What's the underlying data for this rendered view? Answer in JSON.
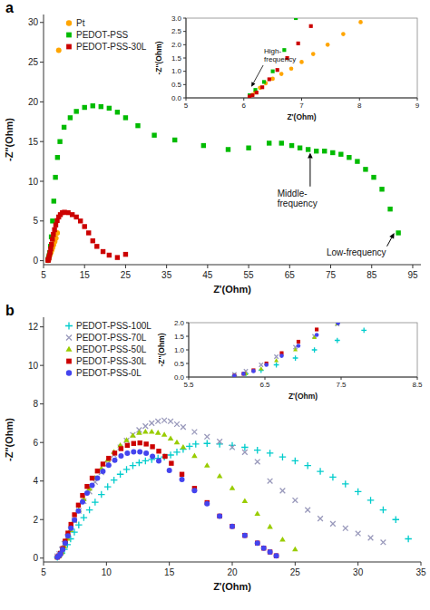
{
  "chart_data": [
    {
      "type": "scatter",
      "title": "a",
      "xlabel": "Z'(Ohm)",
      "ylabel": "-Z''(Ohm)",
      "xlim": [
        5,
        97
      ],
      "ylim": [
        -0.5,
        31
      ],
      "xticks": [
        5,
        15,
        25,
        35,
        45,
        55,
        65,
        75,
        85,
        95
      ],
      "yticks": [
        0,
        5,
        10,
        15,
        20,
        25,
        30
      ],
      "legend": "upper left",
      "series": [
        {
          "name": "Pt",
          "color": "#FFA500",
          "marker": "circle",
          "x": [
            6.1,
            6.15,
            6.2,
            6.28,
            6.38,
            6.5,
            6.65,
            6.82,
            7.0,
            7.2,
            7.45,
            7.72,
            8.02,
            8.35,
            8.7
          ],
          "values": [
            0.05,
            0.12,
            0.22,
            0.38,
            0.55,
            0.72,
            0.9,
            1.1,
            1.35,
            1.65,
            2.0,
            2.4,
            2.85,
            3.5,
            26.5
          ]
        },
        {
          "name": "PEDOT-PSS",
          "color": "#00BB00",
          "marker": "square",
          "x": [
            6.1,
            6.2,
            6.35,
            6.5,
            6.7,
            6.9,
            7.2,
            7.5,
            7.9,
            8.4,
            9.0,
            10.0,
            11.5,
            13.0,
            15.0,
            17.0,
            19.0,
            21.0,
            23.0,
            25.0,
            28.0,
            32.0,
            37.0,
            44.0,
            50.0,
            55.0,
            60.0,
            63.0,
            65.5,
            67.5,
            69.5,
            71.5,
            73.5,
            75.5,
            77.5,
            79.5,
            81.5,
            83.5,
            85.5,
            87.5,
            89.5,
            91.5
          ],
          "values": [
            0.1,
            0.3,
            0.6,
            1.0,
            1.8,
            3.0,
            5.0,
            7.5,
            10.5,
            13.0,
            15.0,
            16.8,
            18.0,
            18.8,
            19.3,
            19.5,
            19.4,
            19.2,
            18.7,
            18.0,
            17.0,
            15.8,
            15.2,
            14.5,
            14.0,
            14.2,
            14.8,
            14.8,
            14.5,
            14.2,
            14.0,
            13.8,
            13.8,
            13.6,
            13.4,
            13.0,
            12.5,
            11.5,
            10.5,
            9.0,
            6.5,
            3.5
          ]
        },
        {
          "name": "PEDOT-PSS-30L",
          "color": "#CC0000",
          "marker": "square",
          "x": [
            6.1,
            6.15,
            6.22,
            6.32,
            6.44,
            6.58,
            6.75,
            6.94,
            7.16,
            7.4,
            7.68,
            7.98,
            8.32,
            8.7,
            9.1,
            9.6,
            10.1,
            11.0,
            12.0,
            13.0,
            14.0,
            15.0,
            16.0,
            17.0,
            18.0,
            19.5,
            21.0,
            23.0,
            25.0
          ],
          "values": [
            0.05,
            0.1,
            0.2,
            0.4,
            0.7,
            1.05,
            1.5,
            2.05,
            2.7,
            3.3,
            3.9,
            4.5,
            5.05,
            5.5,
            5.8,
            6.05,
            6.1,
            6.05,
            5.8,
            5.5,
            5.0,
            4.3,
            3.5,
            2.5,
            1.8,
            1.15,
            0.7,
            0.4,
            0.8
          ]
        }
      ],
      "annotations": [
        {
          "text": "Middle-\nfrequency",
          "x": 70,
          "y": 13.6,
          "text_x": 62,
          "text_y": 9.0
        },
        {
          "text": "Low-frequency",
          "x": 90.5,
          "y": 3.5,
          "text_x": 74,
          "text_y": 1.5
        }
      ]
    },
    {
      "type": "scatter",
      "xlabel": "Z'(Ohm)",
      "ylabel": "-Z''(Ohm)",
      "xlim": [
        5.0,
        9.0
      ],
      "ylim": [
        0.0,
        3.0
      ],
      "xticks": [
        5,
        6,
        7,
        8,
        9
      ],
      "yticks": [
        {
          "value": 0,
          "label": "0.0"
        },
        0.5,
        {
          "value": 1,
          "label": "1.0"
        },
        1.5,
        {
          "value": 2,
          "label": "2.0"
        },
        2.5,
        {
          "value": 3,
          "label": "3.0"
        }
      ],
      "series": [
        {
          "name": "Pt",
          "color": "#FFA500",
          "marker": "circle",
          "x": [
            6.1,
            6.15,
            6.2,
            6.28,
            6.38,
            6.5,
            6.65,
            6.82,
            7.0,
            7.2,
            7.45,
            7.72,
            8.02
          ],
          "values": [
            0.05,
            0.12,
            0.22,
            0.38,
            0.55,
            0.72,
            0.9,
            1.1,
            1.35,
            1.65,
            2.0,
            2.4,
            2.85
          ]
        },
        {
          "name": "PEDOT-PSS",
          "color": "#00BB00",
          "marker": "square",
          "x": [
            6.1,
            6.2,
            6.35,
            6.5,
            6.7,
            6.9
          ],
          "values": [
            0.1,
            0.3,
            0.6,
            1.0,
            1.8,
            3.0
          ]
        },
        {
          "name": "PEDOT-PSS-30L",
          "color": "#CC0000",
          "marker": "square",
          "x": [
            6.1,
            6.15,
            6.22,
            6.32,
            6.44,
            6.58,
            6.75,
            6.94,
            7.16
          ],
          "values": [
            0.05,
            0.1,
            0.2,
            0.4,
            0.7,
            1.05,
            1.5,
            2.05,
            2.7
          ]
        }
      ],
      "annotations": [
        {
          "text": "High-\nfrequency",
          "x": 6.13,
          "y": 0.42,
          "text_x": 6.35,
          "text_y": 1.3
        }
      ]
    },
    {
      "type": "scatter",
      "title": "b",
      "xlabel": "Z'(Ohm)",
      "ylabel": "-Z''(Ohm)",
      "xlim": [
        5,
        35
      ],
      "ylim": [
        -0.2,
        12.5
      ],
      "xticks": [
        5,
        10,
        15,
        20,
        25,
        30,
        35
      ],
      "yticks": [
        0,
        2,
        4,
        6,
        8,
        10,
        12
      ],
      "legend": "upper left",
      "series": [
        {
          "name": "PEDOT-PSS-100L",
          "color": "#00CCCC",
          "marker": "plus",
          "x": [
            6.1,
            6.25,
            6.45,
            6.65,
            6.9,
            7.15,
            7.45,
            7.8,
            8.2,
            8.65,
            9.1,
            9.6,
            10.1,
            10.6,
            11.1,
            11.6,
            12.1,
            12.6,
            13.1,
            13.6,
            14.1,
            14.6,
            15.1,
            15.6,
            16.1,
            16.6,
            17.1,
            18.0,
            19.0,
            20.0,
            21.0,
            22.0,
            23.0,
            24.0,
            25.0,
            26.0,
            27.0,
            28.0,
            29.0,
            30.0,
            31.0,
            32.0,
            33.0,
            34.0
          ],
          "values": [
            0.05,
            0.12,
            0.25,
            0.45,
            0.7,
            1.0,
            1.35,
            1.72,
            2.1,
            2.5,
            2.9,
            3.3,
            3.7,
            4.05,
            4.35,
            4.6,
            4.8,
            4.95,
            5.05,
            5.12,
            5.18,
            5.25,
            5.35,
            5.5,
            5.65,
            5.8,
            5.92,
            5.95,
            5.92,
            5.85,
            5.75,
            5.6,
            5.45,
            5.25,
            5.05,
            4.8,
            4.5,
            4.2,
            3.85,
            3.45,
            3.0,
            2.5,
            2.0,
            1.0
          ]
        },
        {
          "name": "PEDOT-PSS-70L",
          "color": "#9999BB",
          "marker": "cross",
          "x": [
            6.1,
            6.25,
            6.45,
            6.65,
            6.9,
            7.15,
            7.45,
            7.8,
            8.2,
            8.65,
            9.1,
            9.6,
            10.1,
            10.6,
            11.1,
            11.6,
            12.1,
            12.6,
            13.1,
            13.6,
            14.1,
            14.6,
            15.1,
            15.6,
            16.1,
            17.0,
            18.0,
            19.0,
            20.0,
            21.0,
            22.0,
            23.0,
            24.0,
            25.0,
            26.0,
            27.0,
            28.0,
            29.0,
            30.0,
            31.0,
            32.0
          ],
          "values": [
            0.1,
            0.22,
            0.45,
            0.75,
            1.1,
            1.5,
            1.95,
            2.45,
            2.95,
            3.45,
            3.95,
            4.45,
            4.9,
            5.35,
            5.75,
            6.1,
            6.4,
            6.65,
            6.85,
            7.0,
            7.1,
            7.15,
            7.1,
            6.95,
            6.8,
            6.55,
            6.3,
            6.05,
            5.75,
            5.5,
            5.0,
            4.0,
            3.5,
            3.0,
            2.5,
            2.05,
            1.78,
            1.55,
            1.28,
            1.05,
            0.82
          ]
        },
        {
          "name": "PEDOT-PSS-50L",
          "color": "#99CC00",
          "marker": "triangle",
          "x": [
            6.1,
            6.25,
            6.45,
            6.65,
            6.9,
            7.15,
            7.45,
            7.8,
            8.2,
            8.65,
            9.1,
            9.6,
            10.1,
            10.6,
            11.1,
            11.6,
            12.1,
            12.6,
            13.1,
            13.6,
            14.1,
            14.6,
            15.1,
            15.6,
            16.1,
            17.0,
            18.0,
            19.0,
            20.0,
            21.0,
            22.0,
            23.0,
            24.0,
            25.0
          ],
          "values": [
            0.05,
            0.12,
            0.3,
            0.6,
            1.0,
            1.45,
            1.95,
            2.5,
            3.05,
            3.6,
            4.15,
            4.65,
            5.1,
            5.5,
            5.85,
            6.12,
            6.35,
            6.5,
            6.55,
            6.55,
            6.5,
            6.4,
            6.2,
            6.0,
            5.75,
            5.3,
            4.8,
            4.25,
            3.62,
            2.95,
            2.3,
            1.62,
            0.95,
            0.45
          ]
        },
        {
          "name": "PEDOT-PSS-30L",
          "color": "#CC0000",
          "marker": "square",
          "x": [
            6.1,
            6.22,
            6.35,
            6.52,
            6.72,
            6.94,
            7.18,
            7.46,
            7.77,
            8.1,
            8.46,
            8.86,
            9.28,
            9.72,
            10.18,
            10.66,
            11.16,
            11.66,
            12.16,
            12.66,
            13.16,
            13.66,
            14.16,
            14.66,
            15.16,
            16.0,
            17.0,
            18.0,
            19.0,
            20.0,
            21.0,
            22.0,
            22.5,
            23.0,
            23.5
          ],
          "values": [
            0.05,
            0.12,
            0.25,
            0.5,
            0.88,
            1.3,
            1.75,
            2.25,
            2.75,
            3.25,
            3.72,
            4.15,
            4.52,
            4.88,
            5.18,
            5.45,
            5.68,
            5.85,
            5.95,
            5.98,
            5.92,
            5.78,
            5.55,
            5.28,
            4.92,
            4.35,
            3.62,
            2.88,
            2.18,
            1.65,
            1.18,
            0.78,
            0.52,
            0.32,
            0.12
          ]
        },
        {
          "name": "PEDOT-PSS-0L",
          "color": "#4444EE",
          "marker": "circle",
          "x": [
            6.1,
            6.22,
            6.35,
            6.52,
            6.72,
            6.94,
            7.18,
            7.46,
            7.77,
            8.1,
            8.46,
            8.86,
            9.28,
            9.72,
            10.18,
            10.66,
            11.16,
            11.66,
            12.16,
            12.66,
            13.16,
            13.66,
            14.16,
            15.0,
            16.0,
            17.0,
            18.0,
            19.0,
            20.0,
            21.0,
            22.0,
            22.5,
            23.0,
            23.5
          ],
          "values": [
            0.05,
            0.12,
            0.22,
            0.45,
            0.78,
            1.15,
            1.55,
            1.98,
            2.45,
            2.92,
            3.38,
            3.78,
            4.15,
            4.5,
            4.82,
            5.08,
            5.3,
            5.45,
            5.52,
            5.52,
            5.45,
            5.28,
            5.05,
            4.55,
            4.08,
            3.5,
            2.82,
            2.18,
            1.65,
            1.18,
            0.78,
            0.52,
            0.32,
            0.12
          ]
        }
      ]
    },
    {
      "type": "scatter",
      "xlabel": "Z'(Ohm)",
      "ylabel": "-Z''(Ohm)",
      "xlim": [
        5.5,
        8.5
      ],
      "ylim": [
        0.0,
        2.0
      ],
      "xticks": [
        5.5,
        6.5,
        7.5,
        8.5
      ],
      "yticks": [
        {
          "value": 0,
          "label": "0.0"
        },
        0.5,
        {
          "value": 1,
          "label": "1.0"
        },
        1.5,
        {
          "value": 2,
          "label": "2.0"
        }
      ],
      "series": [
        {
          "name": "PEDOT-PSS-100L",
          "color": "#00CCCC",
          "marker": "plus",
          "x": [
            6.1,
            6.25,
            6.45,
            6.65,
            6.9,
            7.15,
            7.45,
            7.8
          ],
          "values": [
            0.05,
            0.12,
            0.25,
            0.45,
            0.7,
            1.0,
            1.35,
            1.72
          ]
        },
        {
          "name": "PEDOT-PSS-70L",
          "color": "#9999BB",
          "marker": "cross",
          "x": [
            6.1,
            6.25,
            6.45,
            6.65,
            6.9,
            7.15,
            7.45
          ],
          "values": [
            0.1,
            0.22,
            0.45,
            0.75,
            1.1,
            1.5,
            1.95
          ]
        },
        {
          "name": "PEDOT-PSS-50L",
          "color": "#99CC00",
          "marker": "triangle",
          "x": [
            6.1,
            6.25,
            6.45,
            6.65,
            6.9,
            7.15,
            7.45
          ],
          "values": [
            0.05,
            0.12,
            0.3,
            0.6,
            1.0,
            1.45,
            1.95
          ]
        },
        {
          "name": "PEDOT-PSS-30L",
          "color": "#CC0000",
          "marker": "square",
          "x": [
            6.1,
            6.22,
            6.35,
            6.52,
            6.72,
            6.94,
            7.18
          ],
          "values": [
            0.05,
            0.12,
            0.25,
            0.5,
            0.88,
            1.3,
            1.75
          ]
        },
        {
          "name": "PEDOT-PSS-0L",
          "color": "#4444EE",
          "marker": "circle",
          "x": [
            6.1,
            6.22,
            6.35,
            6.52,
            6.72,
            6.94,
            7.18,
            7.46
          ],
          "values": [
            0.05,
            0.12,
            0.22,
            0.45,
            0.78,
            1.15,
            1.55,
            1.98
          ]
        }
      ]
    }
  ]
}
